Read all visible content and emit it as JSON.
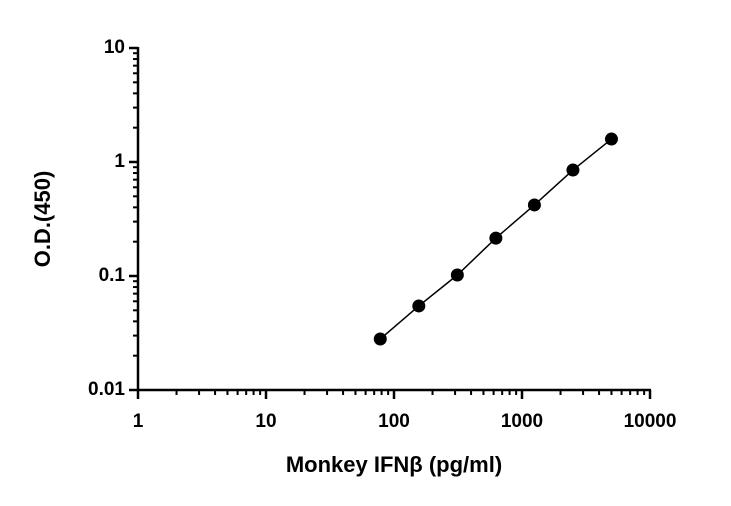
{
  "chart_data": {
    "type": "scatter",
    "log_x": true,
    "log_y": true,
    "connect": true,
    "color": "#000000",
    "x_label": "Monkey IFNβ (pg/ml)",
    "y_label": "O.D.(450)",
    "x": [
      78.125,
      156.25,
      312.5,
      625,
      1250,
      2500,
      5000
    ],
    "values": [
      0.028,
      0.0546,
      0.102,
      0.215,
      0.42,
      0.85,
      1.59
    ],
    "xlim": [
      1,
      10000
    ],
    "xticks": [
      1,
      10,
      100,
      1000,
      10000
    ],
    "ylim": [
      0.01,
      10
    ],
    "yticks": [
      0.01,
      0.1,
      1,
      10
    ]
  }
}
